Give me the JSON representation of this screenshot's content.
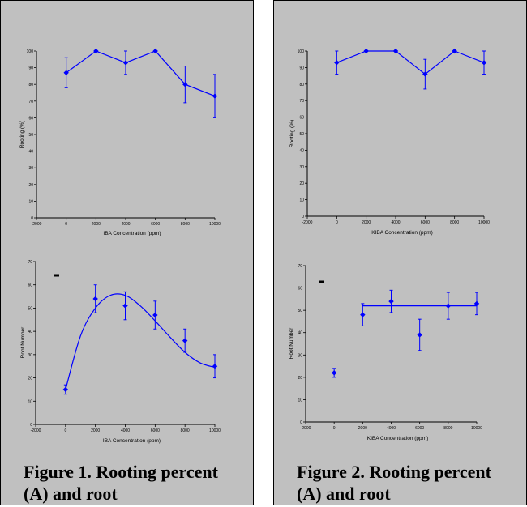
{
  "captions": [
    "Figure 1.  Rooting percent (A) and root",
    "Figure 2.  Rooting percent (A) and root"
  ],
  "colors": {
    "series": "#0000ff",
    "panel_bg": "#c0c0c0",
    "axis": "#000000"
  },
  "chart_data": [
    {
      "type": "line",
      "ylabel": "Rooting (%)",
      "xlabel": "IBA Concentration (ppm)",
      "xlim": [
        -2000,
        10000
      ],
      "ylim": [
        0,
        100
      ],
      "xticks": [
        "-2000",
        "0",
        "2000",
        "4000",
        "6000",
        "8000",
        "10000"
      ],
      "yticks": [
        "0",
        "10",
        "20",
        "30",
        "40",
        "50",
        "60",
        "70",
        "80",
        "90",
        "100"
      ],
      "x": [
        0,
        2000,
        4000,
        6000,
        8000,
        10000
      ],
      "y": [
        87,
        100,
        93,
        100,
        80,
        73
      ],
      "err": [
        9,
        0,
        7,
        0,
        11,
        13
      ],
      "fit": "polyline"
    },
    {
      "type": "line",
      "ylabel": "Rooting (%)",
      "xlabel": "KIBA Concentration (ppm)",
      "xlim": [
        -2000,
        10000
      ],
      "ylim": [
        0,
        100
      ],
      "xticks": [
        "-2000",
        "0",
        "2000",
        "4000",
        "6000",
        "8000",
        "10000"
      ],
      "yticks": [
        "0",
        "10",
        "20",
        "30",
        "40",
        "50",
        "60",
        "70",
        "80",
        "90",
        "100"
      ],
      "x": [
        0,
        2000,
        4000,
        6000,
        8000,
        10000
      ],
      "y": [
        93,
        100,
        100,
        86,
        100,
        93
      ],
      "err": [
        7,
        0,
        0,
        9,
        0,
        7
      ],
      "fit": "polyline"
    },
    {
      "type": "scatter",
      "ylabel": "Root Number",
      "xlabel": "IBA Concentration (ppm)",
      "xlim": [
        -2000,
        10000
      ],
      "ylim": [
        0,
        70
      ],
      "xticks": [
        "-2000",
        "0",
        "2000",
        "4000",
        "6000",
        "8000",
        "10000"
      ],
      "yticks": [
        "0",
        "10",
        "20",
        "30",
        "40",
        "50",
        "60",
        "70"
      ],
      "x": [
        0,
        2000,
        4000,
        6000,
        8000,
        10000
      ],
      "y": [
        15,
        54,
        51,
        47,
        36,
        25
      ],
      "err": [
        2,
        6,
        6,
        6,
        5,
        5
      ],
      "fit": "smooth-curve",
      "fit_points": [
        [
          0,
          15
        ],
        [
          1000,
          38
        ],
        [
          2000,
          50
        ],
        [
          3000,
          55.5
        ],
        [
          4000,
          55.5
        ],
        [
          5000,
          51
        ],
        [
          6000,
          44.5
        ],
        [
          7000,
          37.5
        ],
        [
          8000,
          31
        ],
        [
          9000,
          26.5
        ],
        [
          10000,
          24.5
        ]
      ],
      "annotation": "-"
    },
    {
      "type": "scatter",
      "ylabel": "Root Number",
      "xlabel": "KIBA Concentration (ppm)",
      "xlim": [
        -2000,
        10000
      ],
      "ylim": [
        0,
        70
      ],
      "xticks": [
        "-2000",
        "0",
        "2000",
        "4000",
        "6000",
        "8000",
        "10000"
      ],
      "yticks": [
        "0",
        "10",
        "20",
        "30",
        "40",
        "50",
        "60",
        "70"
      ],
      "x": [
        0,
        2000,
        4000,
        6000,
        8000,
        10000
      ],
      "y": [
        22,
        48,
        54,
        39,
        52,
        53
      ],
      "err": [
        2,
        5,
        5,
        7,
        6,
        5
      ],
      "fit": "plateau",
      "fit_points": [
        [
          2000,
          52
        ],
        [
          10000,
          52
        ]
      ],
      "annotation": "-"
    }
  ]
}
